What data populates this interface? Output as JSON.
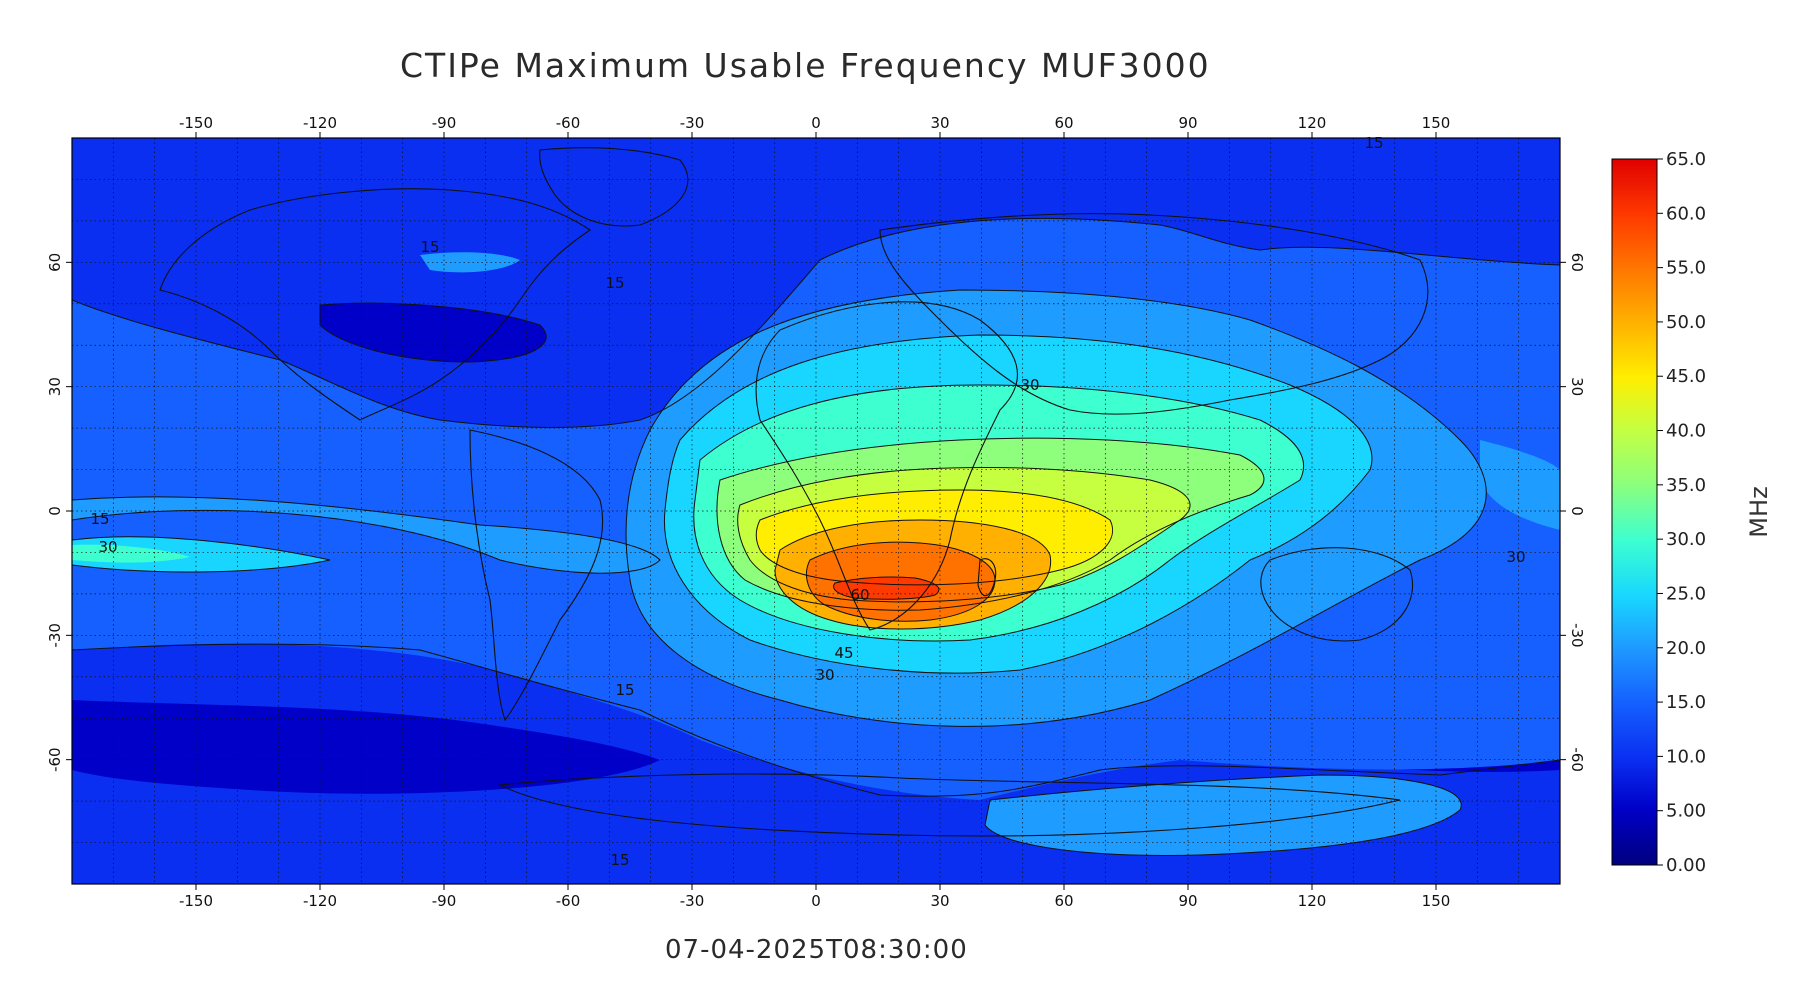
{
  "title": "CTIPe Maximum Usable Frequency MUF3000",
  "timestamp": "07-04-2025T08:30:00",
  "map": {
    "lon_ticks": [
      "-150",
      "-120",
      "-90",
      "-60",
      "-30",
      "0",
      "30",
      "60",
      "90",
      "120",
      "150"
    ],
    "lat_ticks_left": [
      "60",
      "30",
      "0",
      "-30",
      "-60"
    ],
    "lat_ticks_right": [
      "60",
      "30",
      "0",
      "-30",
      "-60"
    ],
    "contour_labels": [
      "15",
      "15",
      "15",
      "15",
      "15",
      "15",
      "30",
      "30",
      "30",
      "30",
      "45",
      "60"
    ]
  },
  "colorbar": {
    "unit": "MHz",
    "tick_labels": [
      "65.0",
      "60.0",
      "55.0",
      "50.0",
      "45.0",
      "40.0",
      "35.0",
      "30.0",
      "25.0",
      "20.0",
      "15.0",
      "10.0",
      "5.00",
      "0.00"
    ],
    "colors": [
      "#00007f",
      "#0000c8",
      "#0a2ff0",
      "#1560ff",
      "#1f9cff",
      "#18d6ff",
      "#3dffd0",
      "#8dff7c",
      "#c6ff3f",
      "#ffee00",
      "#ffb000",
      "#ff7200",
      "#ff3a00",
      "#e00000"
    ]
  },
  "chart_data": {
    "type": "heatmap",
    "title": "CTIPe Maximum Usable Frequency MUF3000",
    "xlim": [
      -180,
      180
    ],
    "ylim": [
      -90,
      90
    ],
    "x_ticks": [
      -150,
      -120,
      -90,
      -60,
      -30,
      0,
      30,
      60,
      90,
      120,
      150
    ],
    "y_ticks": [
      60,
      30,
      0,
      -30,
      -60
    ],
    "color_scale": {
      "min": 0,
      "max": 65,
      "unit": "MHz"
    },
    "peak": {
      "value": 60,
      "lon": 15,
      "lat": -19
    },
    "contour_levels_labeled": [
      15,
      30,
      45,
      60
    ],
    "timestamp": "07-04-2025T08:30:00"
  }
}
